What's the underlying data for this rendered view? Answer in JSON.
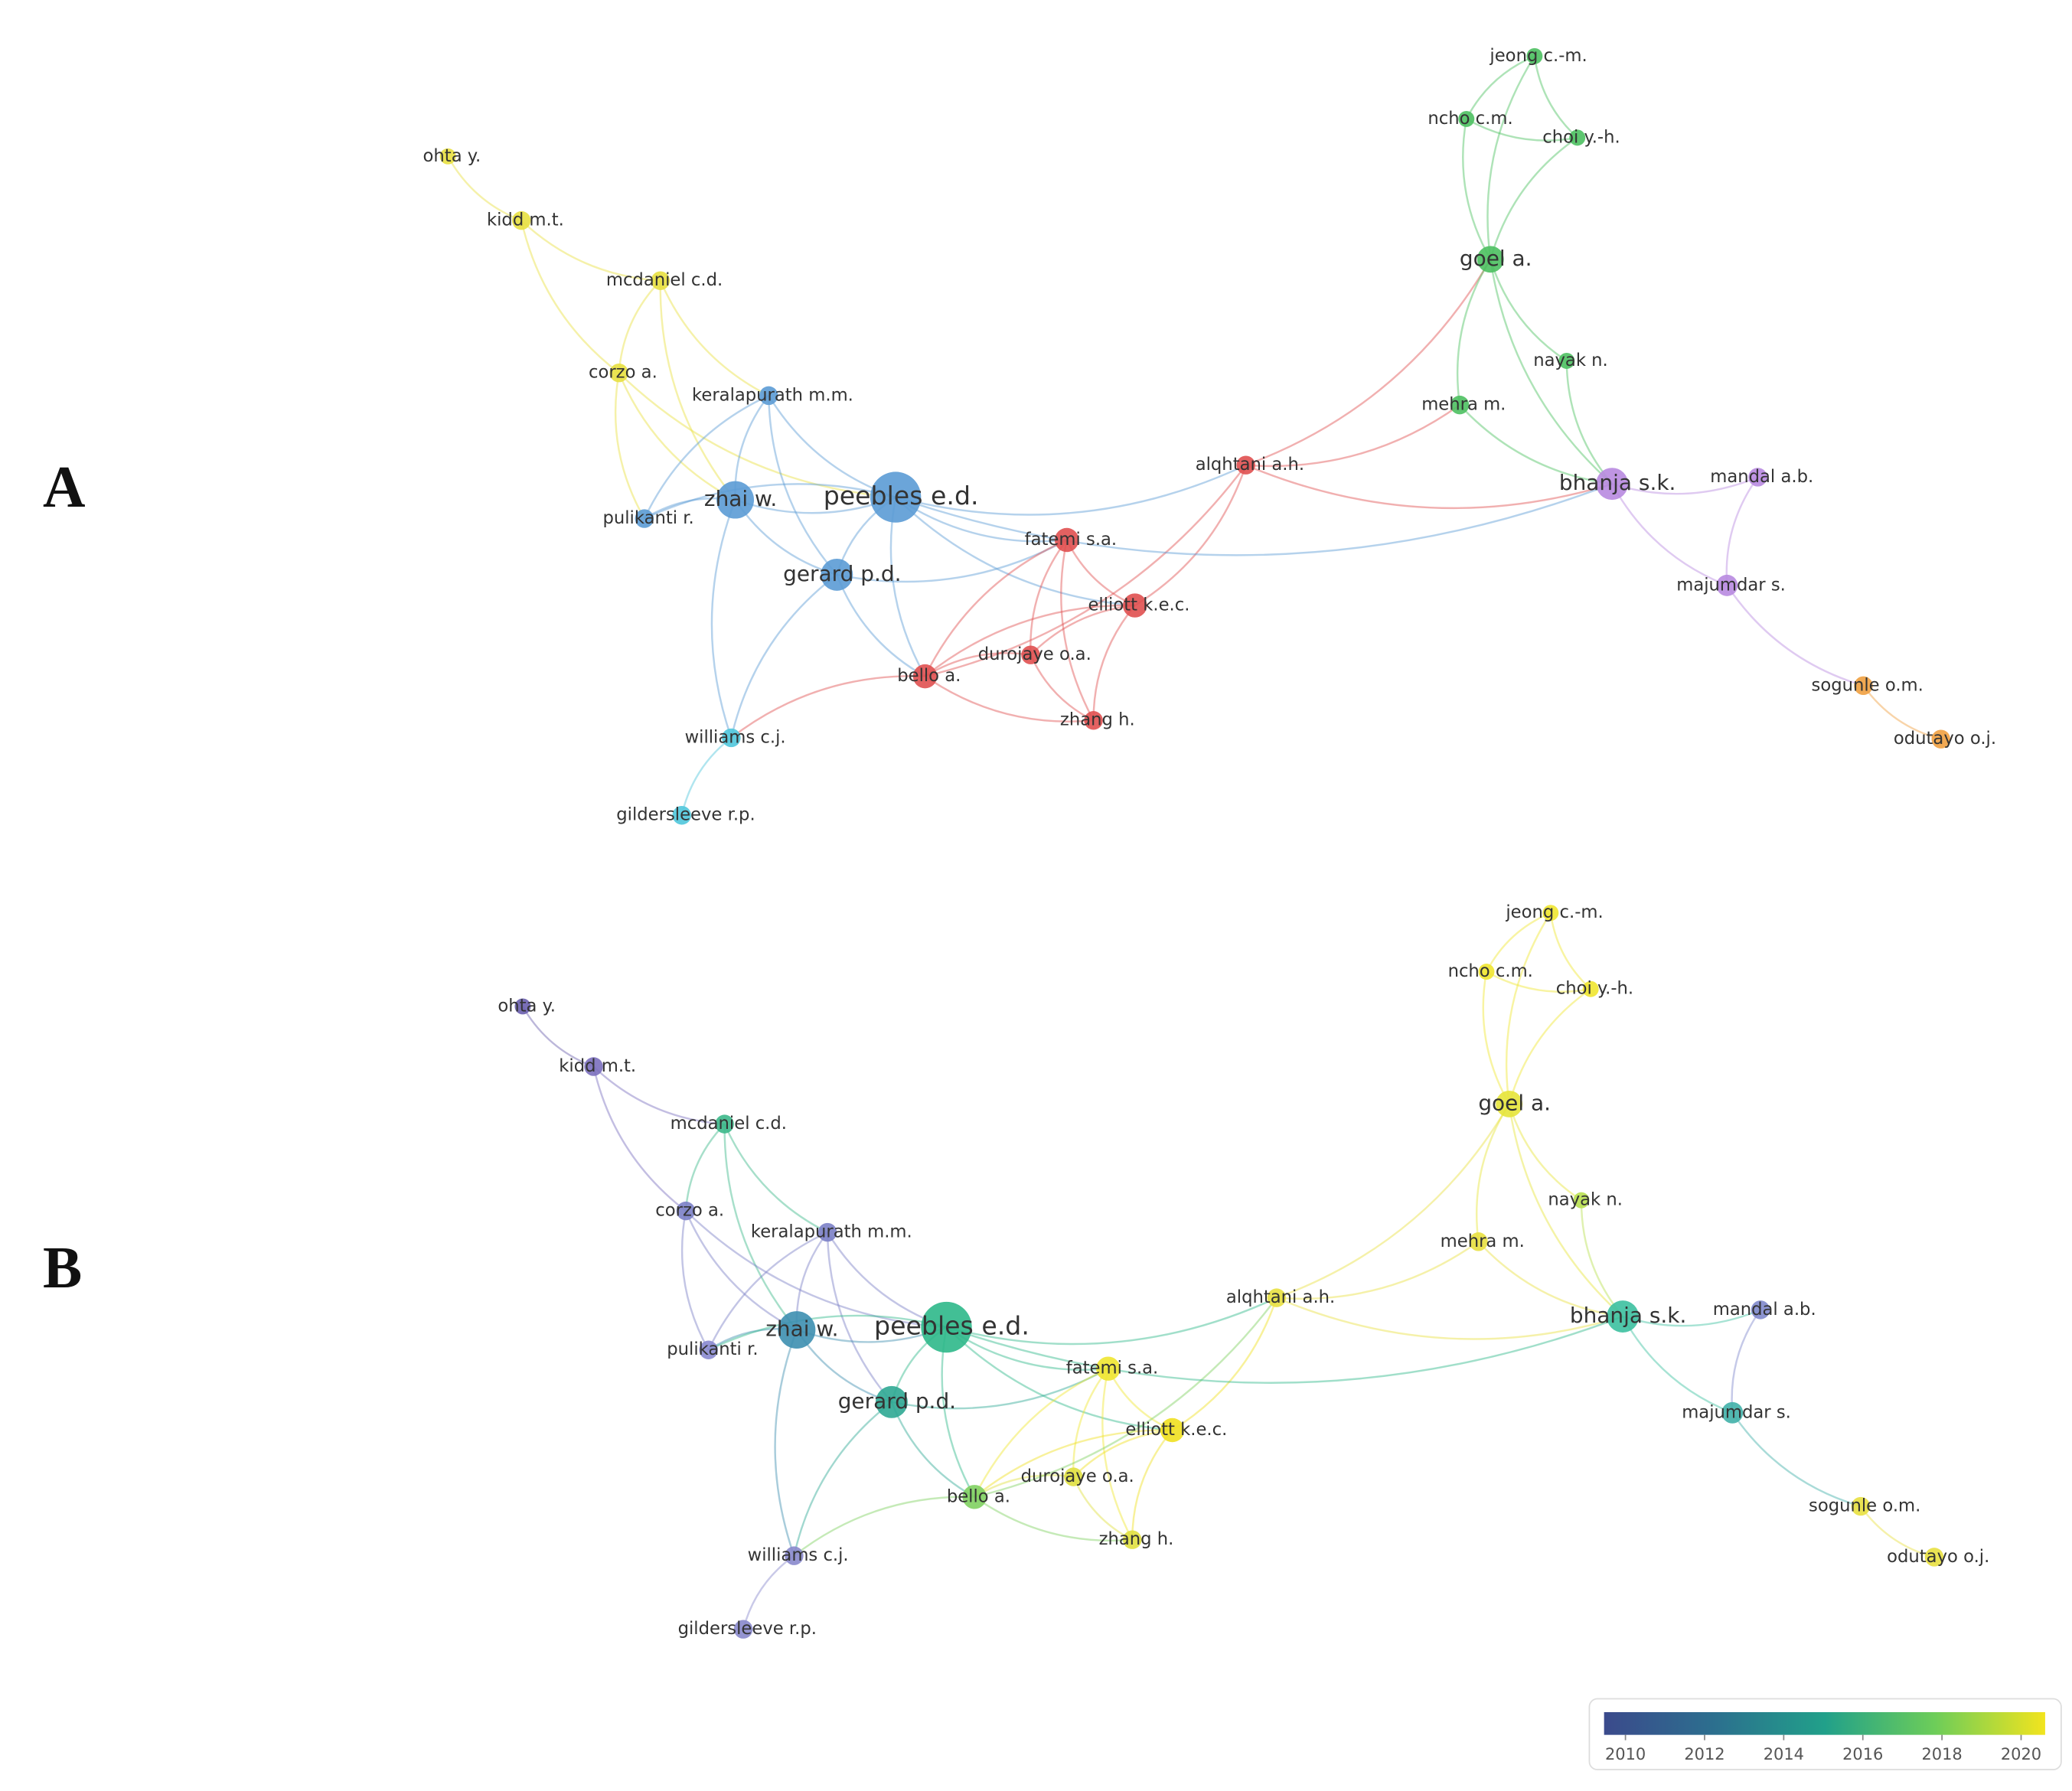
{
  "panels": [
    {
      "label": "A",
      "nodes": [
        "ohta y.",
        "kidd m.t.",
        "mcdaniel c.d.",
        "corzo a.",
        "keralapurath m.m.",
        "zhai w.",
        "peebles e.d.",
        "pulikanti r.",
        "gerard p.d.",
        "fatemi s.a.",
        "elliott k.e.c.",
        "durojaye o.a.",
        "bello a.",
        "zhang h.",
        "williams c.j.",
        "gildersleeve r.p.",
        "alqhtani a.h.",
        "jeong c.-m.",
        "ncho c.m.",
        "choi y.-h.",
        "goel a.",
        "nayak n.",
        "mehra m.",
        "bhanja s.k.",
        "mandal a.b.",
        "majumdar s.",
        "sogunle o.m.",
        "odutayo o.j."
      ]
    },
    {
      "label": "B",
      "nodes": [
        "ohta y.",
        "kidd m.t.",
        "mcdaniel c.d.",
        "corzo a.",
        "keralapurath m.m.",
        "zhai w.",
        "peebles e.d.",
        "pulikanti r.",
        "gerard p.d.",
        "fatemi s.a.",
        "elliott k.e.c.",
        "durojaye o.a.",
        "bello a.",
        "zhang h.",
        "williams c.j.",
        "gildersleeve r.p.",
        "alqhtani a.h.",
        "jeong c.-m.",
        "ncho c.m.",
        "choi y.-h.",
        "goel a.",
        "nayak n.",
        "mehra m.",
        "bhanja s.k.",
        "mandal a.b.",
        "majumdar s.",
        "sogunle o.m.",
        "odutayo o.j."
      ]
    }
  ],
  "colorbar": {
    "ticks": [
      "2010",
      "2012",
      "2014",
      "2016",
      "2018",
      "2020"
    ]
  }
}
